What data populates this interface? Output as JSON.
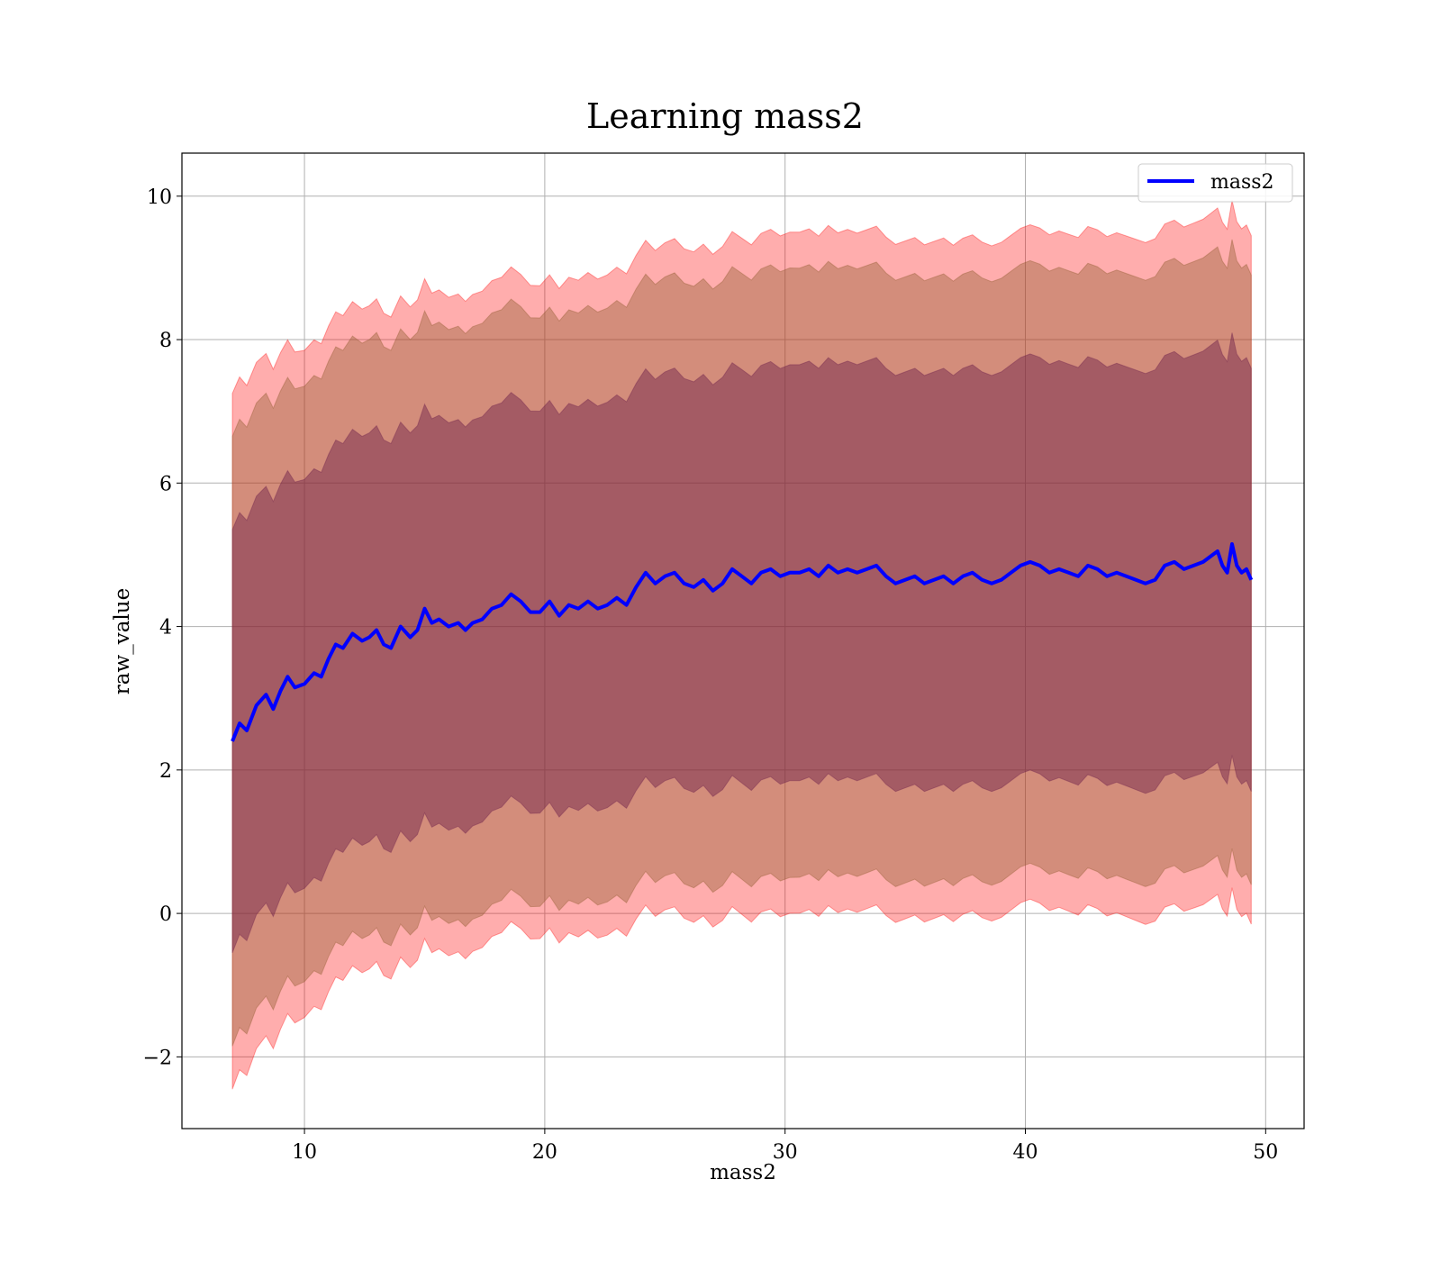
{
  "chart_data": {
    "type": "line",
    "title": "Learning mass2",
    "xlabel": "mass2",
    "ylabel": "raw_value",
    "xlim": [
      4.9,
      51.6
    ],
    "ylim": [
      -3.0,
      10.6
    ],
    "x_ticks": [
      10,
      20,
      30,
      40,
      50
    ],
    "x_tick_labels": [
      "10",
      "20",
      "30",
      "40",
      "50"
    ],
    "y_ticks": [
      -2,
      0,
      2,
      4,
      6,
      8,
      10
    ],
    "y_tick_labels": [
      "−2",
      "0",
      "2",
      "4",
      "6",
      "8",
      "10"
    ],
    "grid": true,
    "legend": {
      "position": "top-right",
      "entries": [
        "mass2"
      ]
    },
    "colors": {
      "line": "#0000ff",
      "band_outer": "#ff0000",
      "band_middle": "#8b5a2b",
      "band_inner": "#6a1e4a",
      "grid": "#b0b0b0"
    },
    "bands": [
      {
        "name": "outer",
        "sigma": 3,
        "opacity": 0.32
      },
      {
        "name": "middle",
        "sigma": 2.5,
        "opacity": 0.38
      },
      {
        "name": "inner",
        "sigma": 1.5,
        "opacity": 0.45
      }
    ],
    "series": [
      {
        "name": "mass2",
        "x": [
          7.0,
          7.3,
          7.6,
          8.0,
          8.4,
          8.7,
          9.0,
          9.3,
          9.6,
          10.0,
          10.4,
          10.7,
          11.0,
          11.3,
          11.6,
          12.0,
          12.4,
          12.7,
          13.0,
          13.3,
          13.6,
          14.0,
          14.4,
          14.7,
          15.0,
          15.3,
          15.6,
          16.0,
          16.4,
          16.7,
          17.0,
          17.4,
          17.8,
          18.2,
          18.6,
          19.0,
          19.4,
          19.8,
          20.2,
          20.6,
          21.0,
          21.4,
          21.8,
          22.2,
          22.6,
          23.0,
          23.4,
          23.8,
          24.2,
          24.6,
          25.0,
          25.4,
          25.8,
          26.2,
          26.6,
          27.0,
          27.4,
          27.8,
          28.2,
          28.6,
          29.0,
          29.4,
          29.8,
          30.2,
          30.6,
          31.0,
          31.4,
          31.8,
          32.2,
          32.6,
          33.0,
          33.4,
          33.8,
          34.2,
          34.6,
          35.0,
          35.4,
          35.8,
          36.2,
          36.6,
          37.0,
          37.4,
          37.8,
          38.2,
          38.6,
          39.0,
          39.4,
          39.8,
          40.2,
          40.6,
          41.0,
          41.4,
          41.8,
          42.2,
          42.6,
          43.0,
          43.4,
          43.8,
          44.2,
          44.6,
          45.0,
          45.4,
          45.8,
          46.2,
          46.6,
          47.0,
          47.4,
          47.8,
          48.0,
          48.2,
          48.4,
          48.6,
          48.8,
          49.0,
          49.2,
          49.4
        ],
        "values": [
          2.4,
          2.65,
          2.55,
          2.9,
          3.05,
          2.85,
          3.1,
          3.3,
          3.15,
          3.2,
          3.35,
          3.3,
          3.55,
          3.75,
          3.7,
          3.9,
          3.8,
          3.85,
          3.95,
          3.75,
          3.7,
          4.0,
          3.85,
          3.95,
          4.25,
          4.05,
          4.1,
          4.0,
          4.05,
          3.95,
          4.05,
          4.1,
          4.25,
          4.3,
          4.45,
          4.35,
          4.2,
          4.2,
          4.35,
          4.15,
          4.3,
          4.25,
          4.35,
          4.25,
          4.3,
          4.4,
          4.3,
          4.55,
          4.75,
          4.6,
          4.7,
          4.75,
          4.6,
          4.55,
          4.65,
          4.5,
          4.6,
          4.8,
          4.7,
          4.6,
          4.75,
          4.8,
          4.7,
          4.75,
          4.75,
          4.8,
          4.7,
          4.85,
          4.75,
          4.8,
          4.75,
          4.8,
          4.85,
          4.7,
          4.6,
          4.65,
          4.7,
          4.6,
          4.65,
          4.7,
          4.6,
          4.7,
          4.75,
          4.65,
          4.6,
          4.65,
          4.75,
          4.85,
          4.9,
          4.85,
          4.75,
          4.8,
          4.75,
          4.7,
          4.85,
          4.8,
          4.7,
          4.75,
          4.7,
          4.65,
          4.6,
          4.65,
          4.85,
          4.9,
          4.8,
          4.85,
          4.9,
          5.0,
          5.05,
          4.85,
          4.75,
          5.15,
          4.85,
          4.75,
          4.8,
          4.65
        ]
      }
    ],
    "band_width_approx": {
      "x": [
        7.0,
        10.0,
        15.0,
        20.0,
        30.0,
        40.0,
        49.4
      ],
      "outer_halfwidth": [
        4.85,
        4.65,
        4.6,
        4.55,
        4.75,
        4.7,
        4.8
      ],
      "middle_halfwidth": [
        4.25,
        4.15,
        4.15,
        4.1,
        4.25,
        4.2,
        4.25
      ],
      "inner_halfwidth": [
        2.95,
        2.85,
        2.85,
        2.8,
        2.9,
        2.9,
        2.95
      ]
    }
  }
}
